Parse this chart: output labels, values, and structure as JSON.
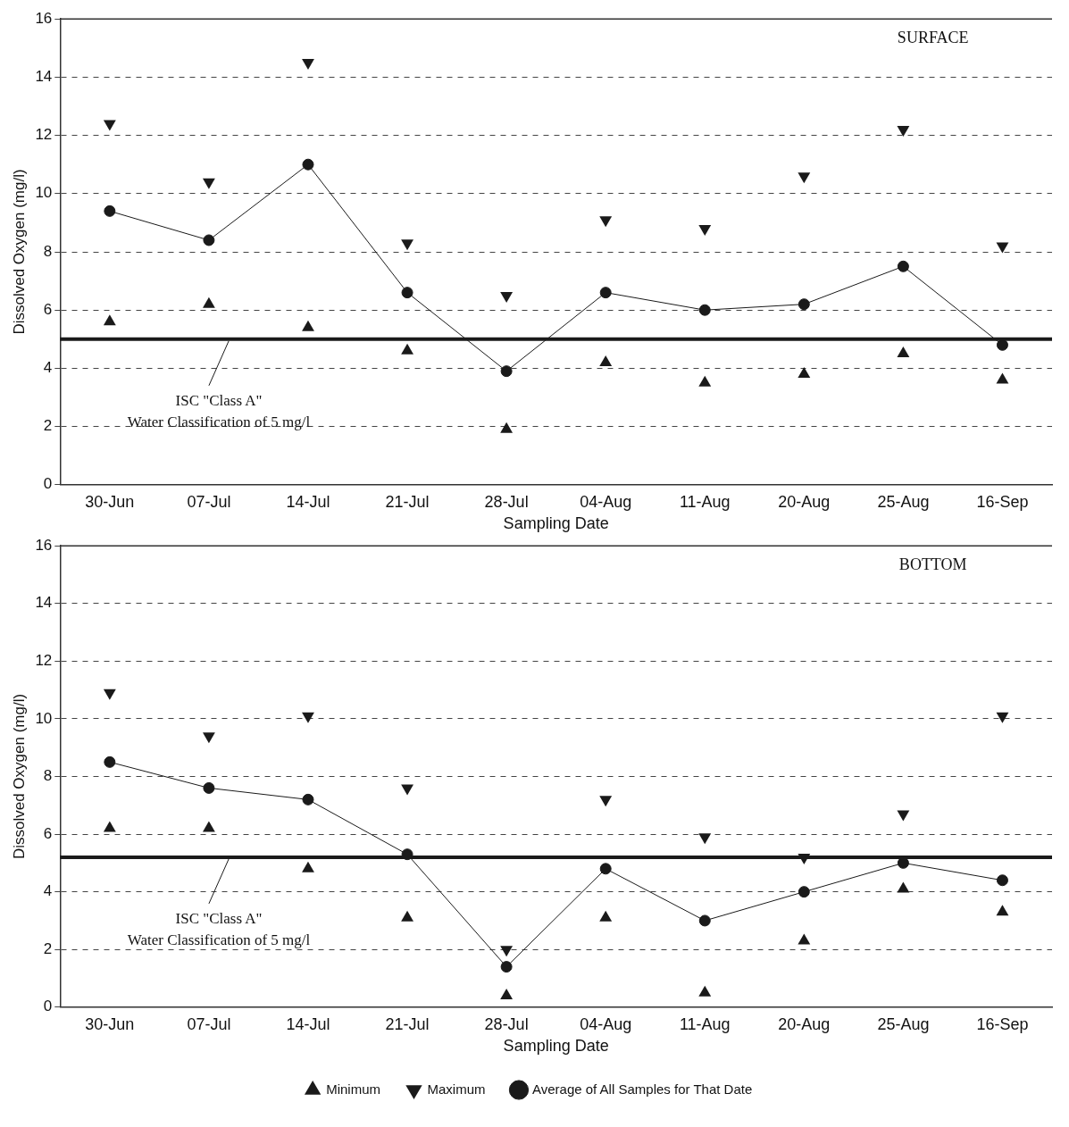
{
  "chart_data": [
    {
      "type": "line",
      "annotations": [
        "SURFACE"
      ],
      "xlabel": "Sampling Date",
      "ylabel": "Dissolved Oxygen (mg/l)",
      "categories": [
        "30-Jun",
        "07-Jul",
        "14-Jul",
        "21-Jul",
        "28-Jul",
        "04-Aug",
        "11-Aug",
        "20-Aug",
        "25-Aug",
        "16-Sep"
      ],
      "series": [
        {
          "type": "scatter",
          "marker": "triangle",
          "color": "#1a1a1a",
          "values": [
            5.6,
            6.2,
            5.4,
            4.6,
            1.9,
            4.2,
            3.5,
            3.8,
            4.5,
            3.6
          ]
        },
        {
          "type": "scatter",
          "marker": "triangle-down",
          "color": "#1a1a1a",
          "values": [
            12.4,
            10.4,
            14.5,
            8.3,
            6.5,
            9.1,
            8.8,
            10.6,
            12.2,
            8.2
          ]
        },
        {
          "marker": "circle",
          "color": "#1a1a1a",
          "values": [
            9.4,
            8.4,
            11.0,
            6.6,
            3.9,
            6.6,
            6.0,
            6.2,
            7.5,
            4.8
          ]
        }
      ],
      "ylim": [
        0,
        16
      ],
      "yticks": [
        0,
        2,
        4,
        6,
        8,
        10,
        12,
        14,
        16
      ],
      "grid": "y",
      "legend": false,
      "ref_lines": [
        {
          "axis": "y",
          "value": 5,
          "label": "ISC \"Class A\"\nWater Classification of 5 mg/l",
          "color": "#1a1a1a"
        }
      ]
    },
    {
      "type": "line",
      "annotations": [
        "BOTTOM"
      ],
      "xlabel": "Sampling Date",
      "ylabel": "Dissolved Oxygen (mg/l)",
      "categories": [
        "30-Jun",
        "07-Jul",
        "14-Jul",
        "21-Jul",
        "28-Jul",
        "04-Aug",
        "11-Aug",
        "20-Aug",
        "25-Aug",
        "16-Sep"
      ],
      "series": [
        {
          "name": "Minimum",
          "type": "scatter",
          "marker": "triangle",
          "color": "#1a1a1a",
          "values": [
            6.2,
            6.2,
            4.8,
            3.1,
            0.4,
            3.1,
            0.5,
            2.3,
            4.1,
            3.3
          ]
        },
        {
          "name": "Maximum",
          "type": "scatter",
          "marker": "triangle-down",
          "color": "#1a1a1a",
          "values": [
            10.9,
            9.4,
            10.1,
            7.6,
            2.0,
            7.2,
            5.9,
            5.2,
            6.7,
            10.1
          ]
        },
        {
          "name": "Average of All Samples for That Date",
          "marker": "circle",
          "color": "#1a1a1a",
          "values": [
            8.5,
            7.6,
            7.2,
            5.3,
            1.4,
            4.8,
            3.0,
            4.0,
            5.0,
            4.4
          ]
        }
      ],
      "ylim": [
        0,
        16
      ],
      "yticks": [
        0,
        2,
        4,
        6,
        8,
        10,
        12,
        14,
        16
      ],
      "grid": "y",
      "legend": "bottom",
      "ref_lines": [
        {
          "axis": "y",
          "value": 5.2,
          "label": "ISC \"Class A\"\nWater Classification of 5 mg/l",
          "color": "#1a1a1a"
        }
      ]
    }
  ]
}
